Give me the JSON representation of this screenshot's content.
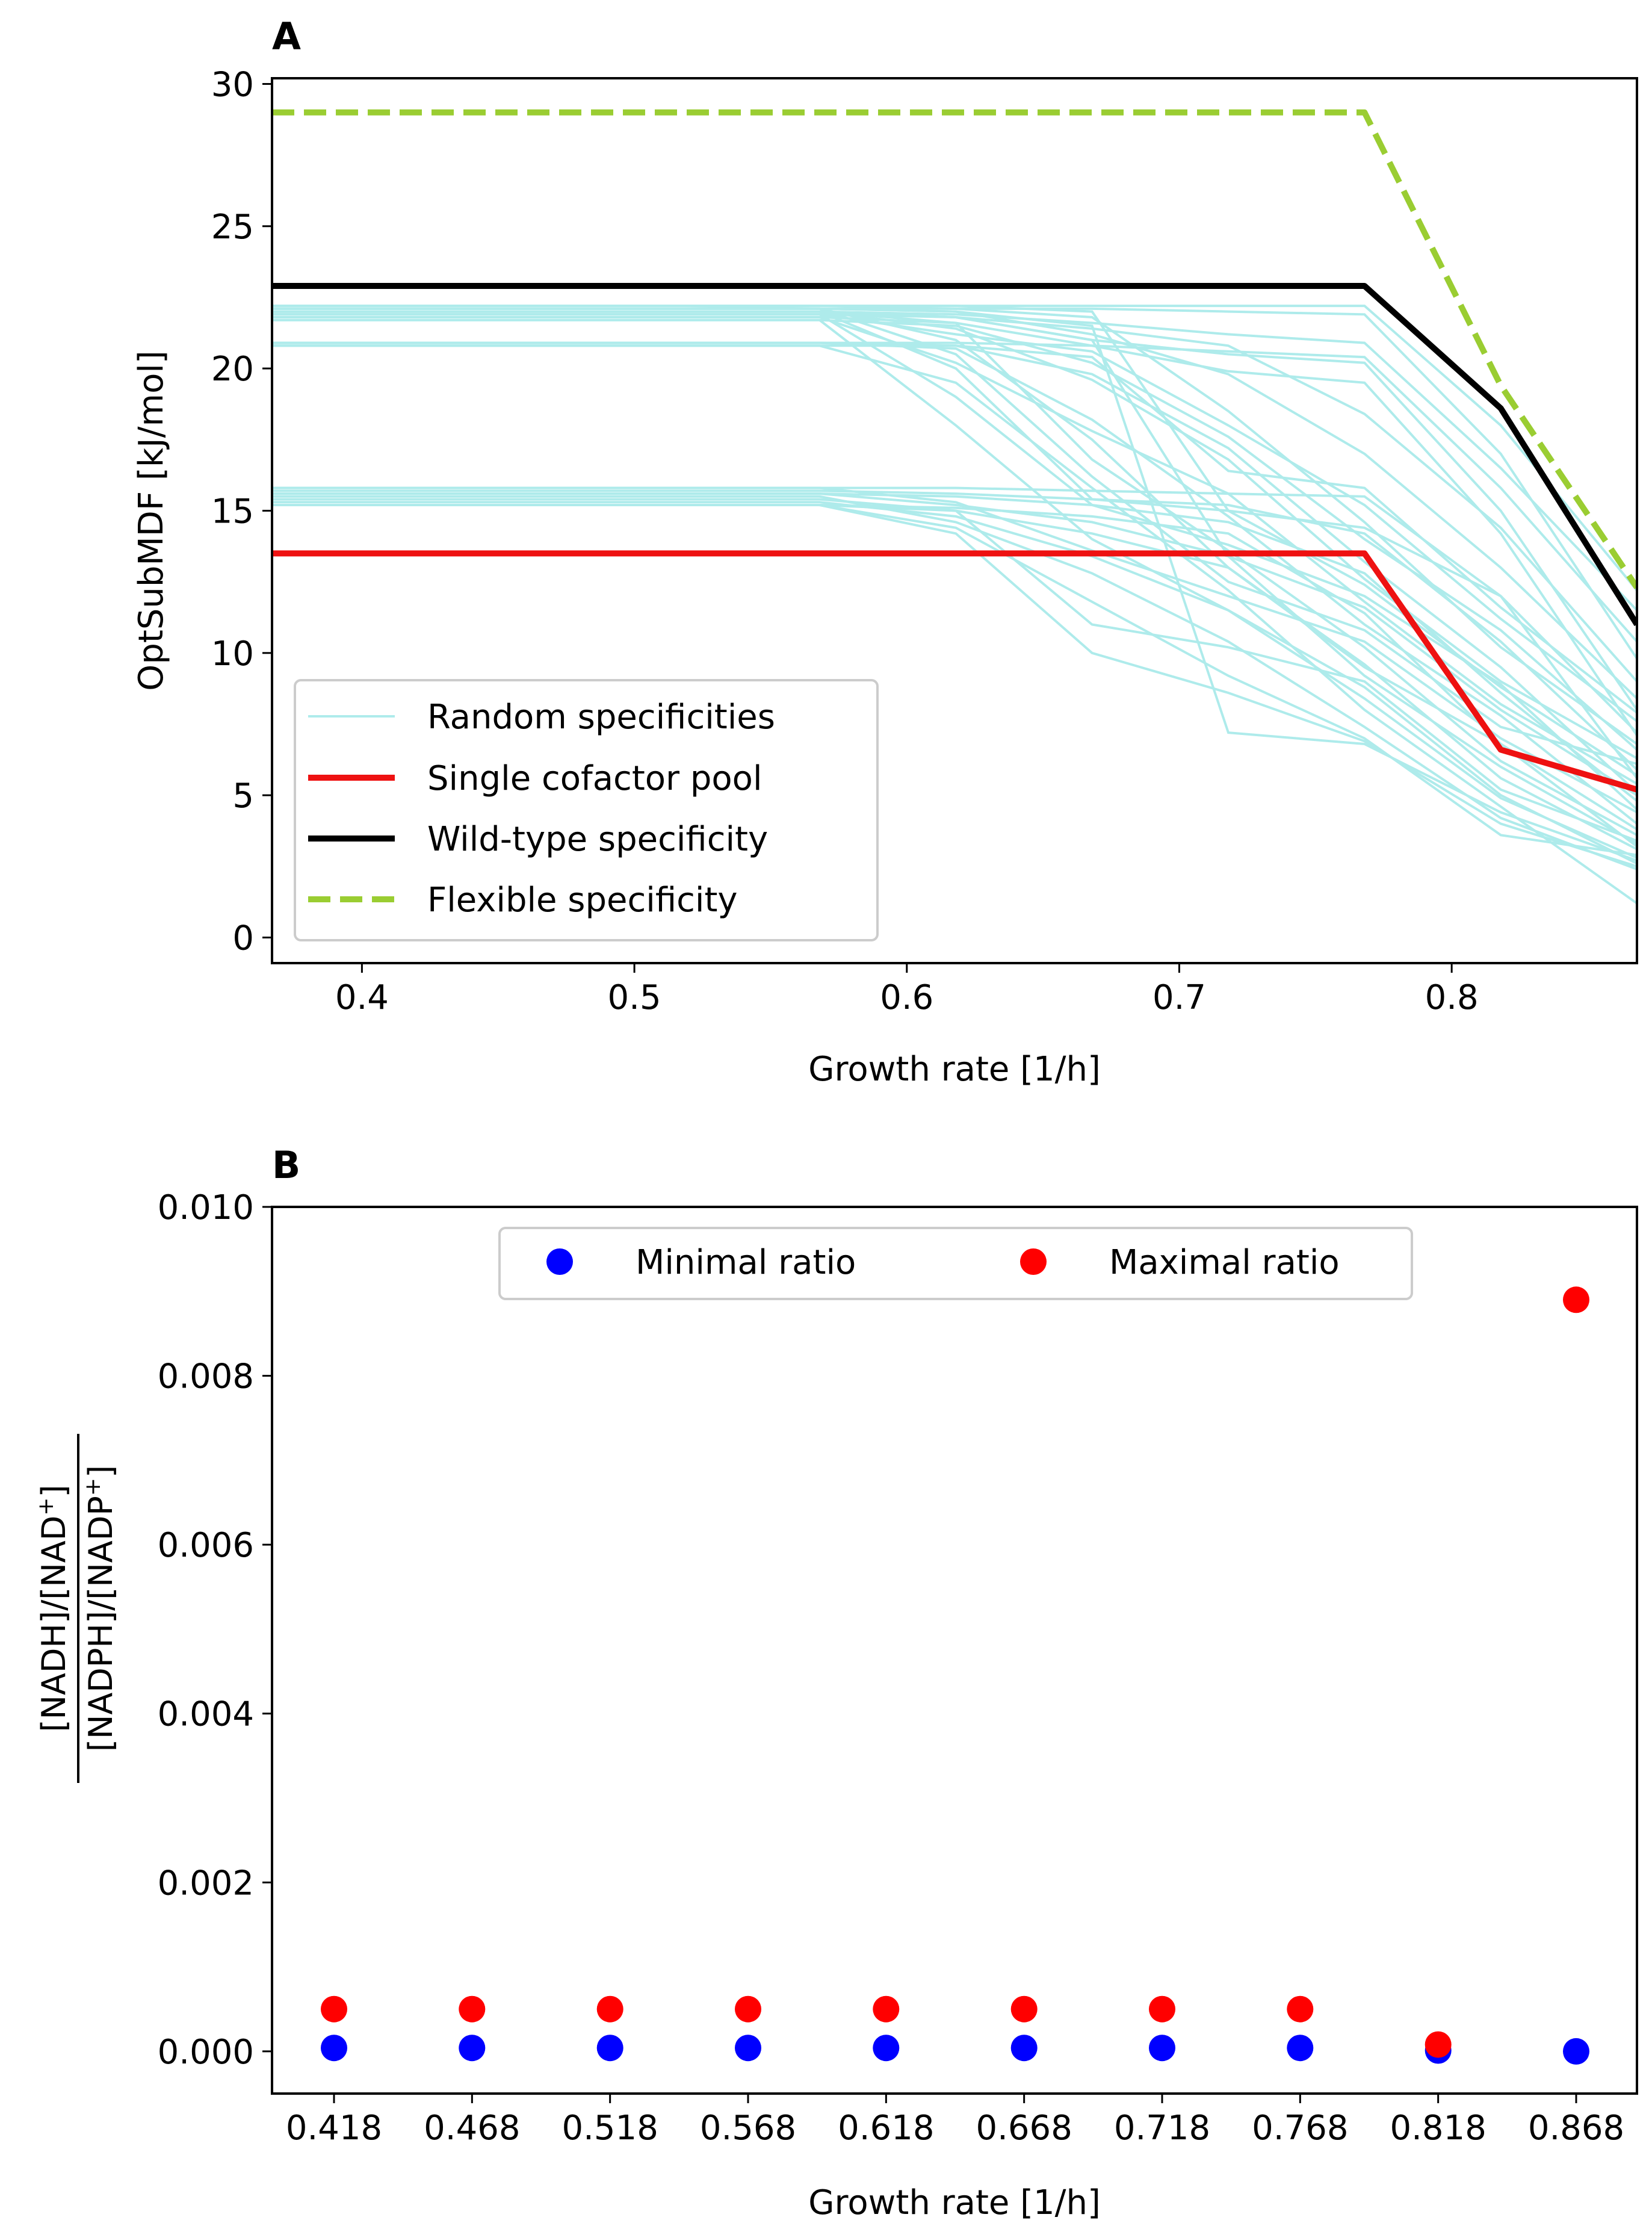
{
  "chart_data": [
    {
      "panel": "A",
      "type": "line",
      "xlabel": "Growth rate [1/h]",
      "ylabel": "OptSubMDF [kJ/mol]",
      "xlim": [
        0.367,
        0.868
      ],
      "ylim": [
        -0.9,
        30.2
      ],
      "xticks": [
        "0.4",
        "0.5",
        "0.6",
        "0.7",
        "0.8"
      ],
      "yticks": [
        "0",
        "5",
        "10",
        "15",
        "20",
        "25",
        "30"
      ],
      "grid": false,
      "legend_position": "lower-left",
      "colors": {
        "random": "#aeebeb",
        "single": "#ee1111",
        "wild": "#000000",
        "flexible": "#9acd32"
      },
      "x": [
        0.367,
        0.418,
        0.468,
        0.518,
        0.568,
        0.618,
        0.668,
        0.718,
        0.768,
        0.818,
        0.868
      ],
      "series": [
        {
          "name": "Single cofactor pool",
          "key": "single",
          "values": [
            13.5,
            13.5,
            13.5,
            13.5,
            13.5,
            13.5,
            13.5,
            13.5,
            13.5,
            6.6,
            5.2
          ]
        },
        {
          "name": "Wild-type specificity",
          "key": "wild",
          "values": [
            22.9,
            22.9,
            22.9,
            22.9,
            22.9,
            22.9,
            22.9,
            22.9,
            22.9,
            18.6,
            11.0
          ]
        },
        {
          "name": "Flexible specificity",
          "key": "flexible",
          "dashed": true,
          "values": [
            29.0,
            29.0,
            29.0,
            29.0,
            29.0,
            29.0,
            29.0,
            29.0,
            29.0,
            19.4,
            12.3
          ]
        }
      ],
      "random_series": {
        "name": "Random specificities",
        "values": [
          [
            22.2,
            22.2,
            22.2,
            22.2,
            22.2,
            22.2,
            22.2,
            22.2,
            22.2,
            18.0,
            12.2
          ],
          [
            22.1,
            22.1,
            22.1,
            22.1,
            22.1,
            22.1,
            22.1,
            22.0,
            21.9,
            17.0,
            9.8
          ],
          [
            22.0,
            22.0,
            22.0,
            22.0,
            22.0,
            21.9,
            21.6,
            21.2,
            20.9,
            16.5,
            11.5
          ],
          [
            22.0,
            22.0,
            22.0,
            22.0,
            22.0,
            21.8,
            21.0,
            20.5,
            20.2,
            15.0,
            8.0
          ],
          [
            21.8,
            21.8,
            21.8,
            21.8,
            21.8,
            21.6,
            20.8,
            19.9,
            19.5,
            14.2,
            7.1
          ],
          [
            22.0,
            22.0,
            22.0,
            22.0,
            22.0,
            20.0,
            15.4,
            15.0,
            14.4,
            12.0,
            5.6
          ],
          [
            21.9,
            21.9,
            21.9,
            21.9,
            21.9,
            19.0,
            15.2,
            13.8,
            12.0,
            8.9,
            4.5
          ],
          [
            22.1,
            22.1,
            22.1,
            22.1,
            22.1,
            21.0,
            17.5,
            13.0,
            9.5,
            6.8,
            3.2
          ],
          [
            21.7,
            21.7,
            21.7,
            21.7,
            21.7,
            18.0,
            14.0,
            11.5,
            8.8,
            5.0,
            2.6
          ],
          [
            22.2,
            22.2,
            22.2,
            22.2,
            22.1,
            20.5,
            16.2,
            12.5,
            10.8,
            7.4,
            6.1
          ],
          [
            20.9,
            20.9,
            20.9,
            20.9,
            20.9,
            20.9,
            20.8,
            20.6,
            20.4,
            15.8,
            10.4
          ],
          [
            20.8,
            20.8,
            20.8,
            20.8,
            20.8,
            20.8,
            19.8,
            17.2,
            13.2,
            9.5,
            5.1
          ],
          [
            20.9,
            20.9,
            20.9,
            20.9,
            20.9,
            20.7,
            18.2,
            14.8,
            11.0,
            7.8,
            4.0
          ],
          [
            20.8,
            20.8,
            20.8,
            20.8,
            20.8,
            19.5,
            15.8,
            12.2,
            8.0,
            4.6,
            1.2
          ],
          [
            22.2,
            22.2,
            22.2,
            22.2,
            22.2,
            22.1,
            21.8,
            18.5,
            14.6,
            10.2,
            6.8
          ],
          [
            22.0,
            22.0,
            22.0,
            22.0,
            22.0,
            21.4,
            19.6,
            16.8,
            12.6,
            9.0,
            6.3
          ],
          [
            21.9,
            21.9,
            21.9,
            21.9,
            21.9,
            21.2,
            20.6,
            18.0,
            15.2,
            11.2,
            7.6
          ],
          [
            22.1,
            22.1,
            22.1,
            22.1,
            22.1,
            22.0,
            21.2,
            19.8,
            17.0,
            13.0,
            8.4
          ],
          [
            21.8,
            21.8,
            21.8,
            21.8,
            21.8,
            20.2,
            17.8,
            15.6,
            11.8,
            8.2,
            5.4
          ],
          [
            22.0,
            22.0,
            22.0,
            22.0,
            22.0,
            21.6,
            16.8,
            13.6,
            10.2,
            6.2,
            3.6
          ],
          [
            15.8,
            15.8,
            15.8,
            15.8,
            15.8,
            15.8,
            15.7,
            15.6,
            15.5,
            12.0,
            7.2
          ],
          [
            15.7,
            15.7,
            15.7,
            15.7,
            15.7,
            15.6,
            15.4,
            15.2,
            14.2,
            10.4,
            5.9
          ],
          [
            15.6,
            15.6,
            15.6,
            15.6,
            15.6,
            15.5,
            15.2,
            14.6,
            12.8,
            8.6,
            4.8
          ],
          [
            15.2,
            15.2,
            15.2,
            15.2,
            15.2,
            15.1,
            14.8,
            14.2,
            11.4,
            6.8,
            3.8
          ],
          [
            15.2,
            15.2,
            15.2,
            15.2,
            15.2,
            15.0,
            14.2,
            13.0,
            9.6,
            5.6,
            3.1
          ],
          [
            15.3,
            15.3,
            15.3,
            15.3,
            15.3,
            14.8,
            13.4,
            11.5,
            8.4,
            4.9,
            2.8
          ],
          [
            15.5,
            15.5,
            15.5,
            15.5,
            15.5,
            14.6,
            12.8,
            10.4,
            7.4,
            4.2,
            2.4
          ],
          [
            15.2,
            15.2,
            15.2,
            15.2,
            15.2,
            14.4,
            11.8,
            9.2,
            7.0,
            3.6,
            2.9
          ],
          [
            15.8,
            15.8,
            15.8,
            15.8,
            15.8,
            15.3,
            13.6,
            12.0,
            10.4,
            7.0,
            4.4
          ],
          [
            15.4,
            15.4,
            15.4,
            15.4,
            15.4,
            15.0,
            11.0,
            10.2,
            9.0,
            5.2,
            3.4
          ],
          [
            15.2,
            15.2,
            15.2,
            15.2,
            15.2,
            14.2,
            10.0,
            8.6,
            6.9,
            4.0,
            2.5
          ],
          [
            15.6,
            15.6,
            15.6,
            15.6,
            15.6,
            15.2,
            14.6,
            13.4,
            11.6,
            8.0,
            5.0
          ],
          [
            22.2,
            22.2,
            22.2,
            22.2,
            22.2,
            22.2,
            22.0,
            15.0,
            12.4,
            8.8,
            5.7
          ],
          [
            22.1,
            22.1,
            22.1,
            22.1,
            22.1,
            22.0,
            21.5,
            7.2,
            6.8,
            4.4,
            2.7
          ],
          [
            21.9,
            21.9,
            21.9,
            21.9,
            21.9,
            21.8,
            21.0,
            13.4,
            9.2,
            6.0,
            3.3
          ],
          [
            20.9,
            20.9,
            20.9,
            20.9,
            20.9,
            20.8,
            20.4,
            16.4,
            15.8,
            11.6,
            7.9
          ],
          [
            22.0,
            22.0,
            22.0,
            22.0,
            22.0,
            21.8,
            21.4,
            20.8,
            18.4,
            14.4,
            9.0
          ],
          [
            21.7,
            21.7,
            21.7,
            21.7,
            21.7,
            21.5,
            20.2,
            17.6,
            14.0,
            10.8,
            6.6
          ]
        ]
      },
      "legend": [
        "Random specificities",
        "Single cofactor pool",
        "Wild-type specificity",
        "Flexible specificity"
      ]
    },
    {
      "panel": "B",
      "type": "scatter",
      "xlabel": "Growth rate [1/h]",
      "ylabel_numerator": "[NADH]/[NAD",
      "ylabel_denominator": "[NADPH]/[NADP",
      "ylabel_sup": "+",
      "ylim": [
        -0.0005,
        0.01
      ],
      "yticks": [
        "0.000",
        "0.002",
        "0.004",
        "0.006",
        "0.008",
        "0.010"
      ],
      "grid": false,
      "legend_position": "top-center",
      "categories": [
        "0.418",
        "0.468",
        "0.518",
        "0.568",
        "0.618",
        "0.668",
        "0.718",
        "0.768",
        "0.818",
        "0.868"
      ],
      "series": [
        {
          "name": "Minimal ratio",
          "color": "#0000ff",
          "values": [
            4e-05,
            4e-05,
            4e-05,
            4e-05,
            4e-05,
            4e-05,
            4e-05,
            4e-05,
            1e-05,
            0.0
          ]
        },
        {
          "name": "Maximal ratio",
          "color": "#ff0000",
          "values": [
            0.0005,
            0.0005,
            0.0005,
            0.0005,
            0.0005,
            0.0005,
            0.0005,
            0.0005,
            8e-05,
            0.0089
          ]
        }
      ]
    }
  ],
  "labels": {
    "panel_a": "A",
    "panel_b": "B"
  }
}
